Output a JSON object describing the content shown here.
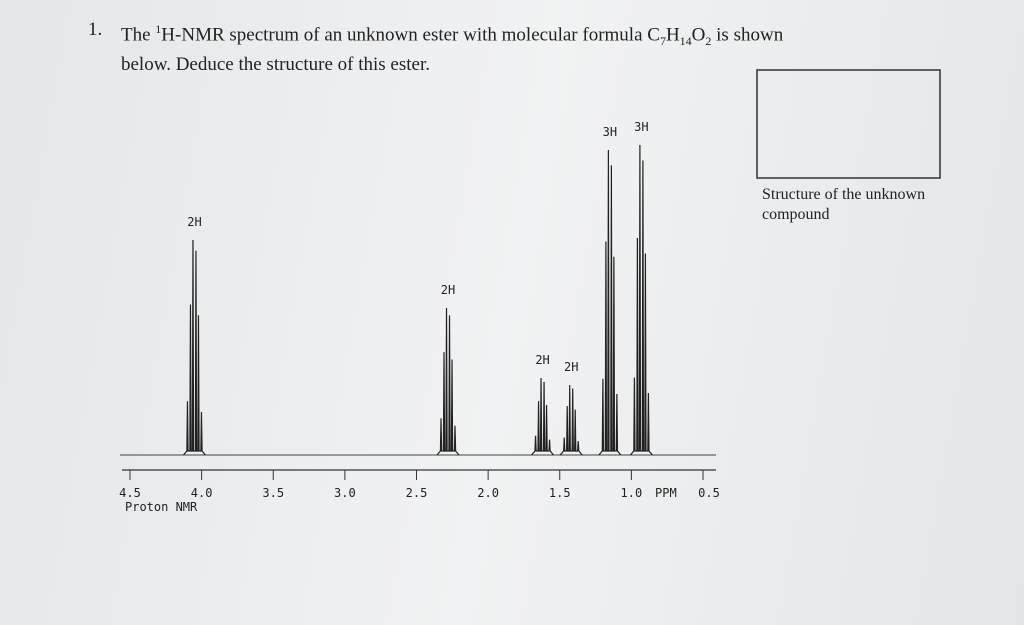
{
  "question": {
    "number": "1.",
    "parts": [
      "The ",
      "1",
      "H-NMR spectrum of an unknown ester with molecular formula C",
      "7",
      "H",
      "14",
      "O",
      "2",
      " is shown"
    ],
    "line2": "below. Deduce the structure of this ester."
  },
  "answer_box": {
    "caption": "Structure of the unknown compound"
  },
  "spectrum": {
    "xlim": [
      4.5,
      0.5
    ],
    "ylim": [
      0,
      320
    ],
    "xticks": [
      {
        "value": 4.5,
        "label": "4.5"
      },
      {
        "value": 4.0,
        "label": "4.0"
      },
      {
        "value": 3.5,
        "label": "3.5"
      },
      {
        "value": 3.0,
        "label": "3.0"
      },
      {
        "value": 2.5,
        "label": "2.5"
      },
      {
        "value": 2.0,
        "label": "2.0"
      },
      {
        "value": 1.5,
        "label": "1.5"
      },
      {
        "value": 1.0,
        "label": "1.0"
      },
      {
        "value": 0.5,
        "label": "0.5"
      }
    ],
    "unit": "PPM",
    "caption": "Proton NMR",
    "peaks": [
      {
        "shift": 4.05,
        "height": 215,
        "label": "2H"
      },
      {
        "shift": 2.28,
        "height": 147,
        "label": "2H"
      },
      {
        "shift": 1.62,
        "height": 77,
        "label": "2H"
      },
      {
        "shift": 1.42,
        "height": 70,
        "label": "2H"
      },
      {
        "shift": 1.15,
        "height": 305,
        "label": "3H"
      },
      {
        "shift": 0.93,
        "height": 310,
        "label": "3H"
      }
    ]
  }
}
